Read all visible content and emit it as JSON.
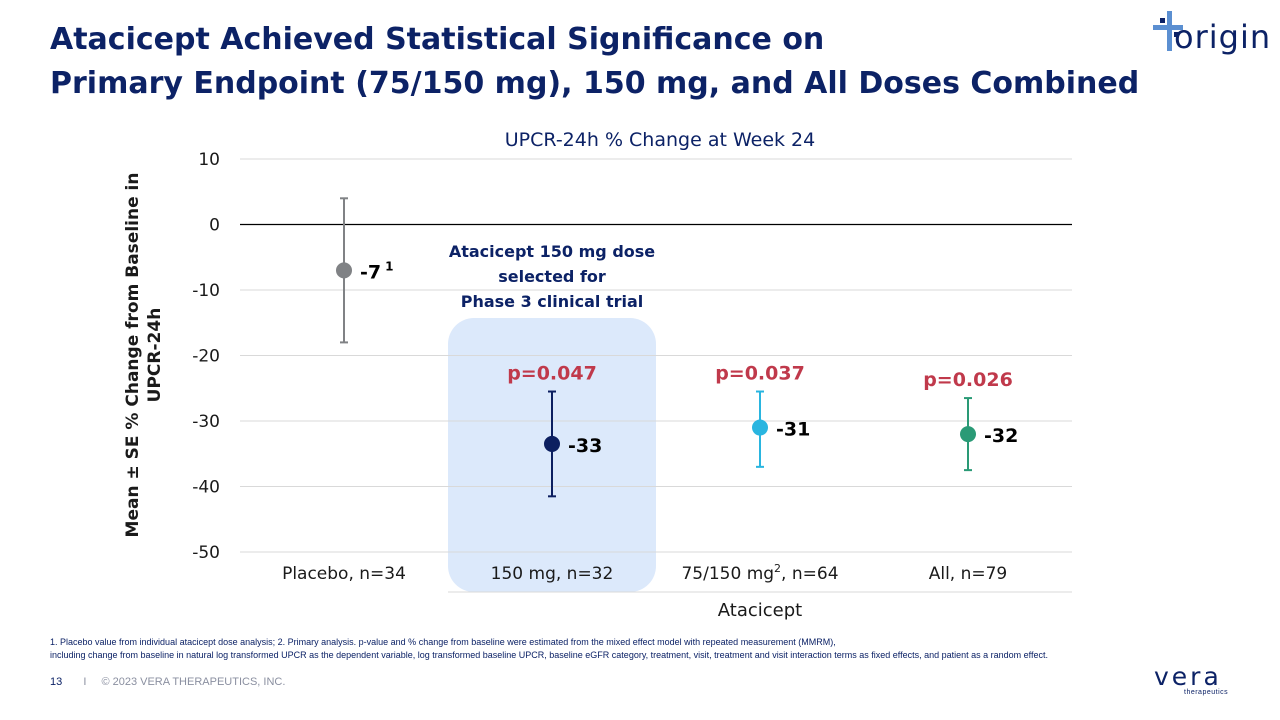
{
  "title": {
    "line1": "Atacicept Achieved Statistical Significance on",
    "line2": "Primary Endpoint (75/150 mg), 150 mg, and All Doses Combined"
  },
  "logo_top": {
    "text": "origin",
    "icon": "cross-plus-icon"
  },
  "chart_data": {
    "type": "scatter",
    "title": "UPCR-24h % Change at Week 24",
    "ylabel": "Mean ± SE % Change from Baseline in UPCR-24h",
    "xlabel": "Atacicept",
    "ylim": [
      -50,
      10
    ],
    "yticks": [
      10,
      0,
      -10,
      -20,
      -30,
      -40,
      -50
    ],
    "grid": true,
    "categories": [
      "Placebo, n=34",
      "150 mg, n=32",
      "75/150 mg², n=64",
      "All, n=79"
    ],
    "points": [
      {
        "category": "Placebo, n=34",
        "value": -7,
        "se_low": -18,
        "se_high": 4,
        "label": "-7",
        "label_sup": "1",
        "pvalue": "",
        "color": "#808285"
      },
      {
        "category": "150 mg, n=32",
        "value": -33.5,
        "se_low": -41.5,
        "se_high": -25.5,
        "label": "-33",
        "label_sup": "",
        "pvalue": "p=0.047",
        "color": "#0c1f60"
      },
      {
        "category": "75/150 mg², n=64",
        "value": -31,
        "se_low": -37,
        "se_high": -25.5,
        "label": "-31",
        "label_sup": "",
        "pvalue": "p=0.037",
        "color": "#29b5e0"
      },
      {
        "category": "All, n=79",
        "value": -32,
        "se_low": -37.5,
        "se_high": -26.5,
        "label": "-32",
        "label_sup": "",
        "pvalue": "p=0.026",
        "color": "#2a9a76"
      }
    ],
    "highlight": {
      "category": "150 mg, n=32",
      "lines": [
        "Atacicept 150 mg dose",
        "selected for",
        "Phase 3 clinical trial"
      ],
      "color": "#dce9fb"
    },
    "pvalue_color": "#c0394b"
  },
  "footnotes": {
    "line1": "1. Placebo value from individual atacicept dose analysis; 2. Primary analysis. p-value and % change from baseline were estimated from the mixed effect model with repeated measurement (MMRM),",
    "line2": "including change from baseline in natural log transformed UPCR as the dependent variable, log transformed baseline UPCR, baseline eGFR category, treatment, visit, treatment and visit interaction terms as fixed effects, and patient as a random effect."
  },
  "footer": {
    "page": "13",
    "separator": "I",
    "copyright": "© 2023 VERA THERAPEUTICS, INC."
  },
  "logo_bottom": {
    "name": "vera",
    "sub": "therapeutics"
  }
}
